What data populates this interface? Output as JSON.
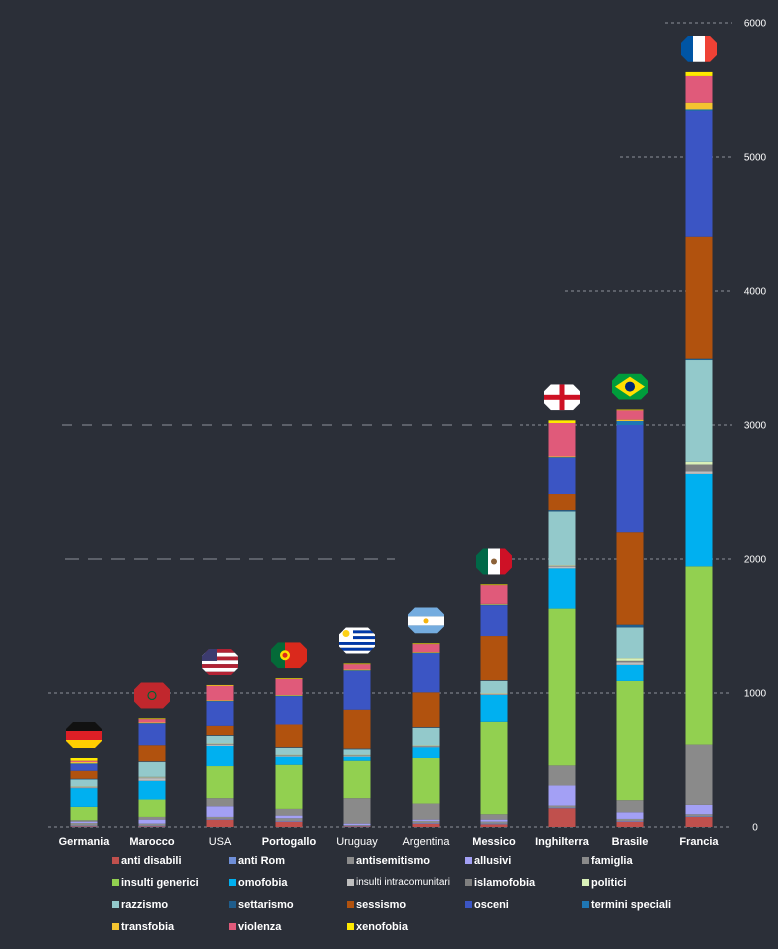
{
  "chart_data": {
    "type": "bar",
    "stacked": true,
    "ylim": [
      0,
      6000
    ],
    "y_ticks": [
      0,
      1000,
      2000,
      3000,
      4000,
      5000,
      6000
    ],
    "y_axis_side": "right",
    "categories": [
      "Germania",
      "Marocco",
      "USA",
      "Portogallo",
      "Uruguay",
      "Argentina",
      "Messico",
      "Inghilterra",
      "Brasile",
      "Francia"
    ],
    "flags": [
      "germany-flag",
      "morocco-flag",
      "usa-flag",
      "portugal-flag",
      "uruguay-flag",
      "argentina-flag",
      "mexico-flag",
      "england-flag",
      "brazil-flag",
      "france-flag"
    ],
    "legend_position": "bottom",
    "series": [
      {
        "name": "anti disabili",
        "color": "#c0504d",
        "values": [
          5,
          5,
          55,
          40,
          5,
          25,
          20,
          140,
          40,
          75
        ]
      },
      {
        "name": "anti Rom",
        "color": "#6f8fd8",
        "values": [
          5,
          5,
          5,
          5,
          5,
          5,
          5,
          5,
          5,
          5
        ]
      },
      {
        "name": "antisemitismo",
        "color": "#8c8c8c",
        "values": [
          20,
          15,
          15,
          20,
          5,
          15,
          15,
          15,
          15,
          15
        ]
      },
      {
        "name": "allusivi",
        "color": "#a3a0f5",
        "values": [
          10,
          30,
          80,
          20,
          10,
          10,
          15,
          150,
          50,
          70
        ]
      },
      {
        "name": "famiglia",
        "color": "#8a8a8a",
        "values": [
          10,
          20,
          60,
          50,
          190,
          120,
          40,
          150,
          90,
          450
        ]
      },
      {
        "name": "insulti generici",
        "color": "#92d050",
        "values": [
          100,
          130,
          240,
          330,
          280,
          340,
          690,
          1170,
          890,
          1330
        ]
      },
      {
        "name": "omofobia",
        "color": "#00b0f0",
        "values": [
          140,
          140,
          150,
          60,
          30,
          80,
          200,
          300,
          120,
          690
        ]
      },
      {
        "name": "insulti intracomunitari",
        "color": "#bfbfbf",
        "values": [
          5,
          20,
          10,
          5,
          5,
          5,
          5,
          15,
          20,
          20
        ]
      },
      {
        "name": "islamofobia",
        "color": "#7f7f7f",
        "values": [
          5,
          5,
          5,
          5,
          5,
          5,
          5,
          5,
          10,
          50
        ]
      },
      {
        "name": "politici",
        "color": "#d9f0b8",
        "values": [
          5,
          5,
          5,
          5,
          5,
          5,
          5,
          5,
          20,
          20
        ]
      },
      {
        "name": "razzismo",
        "color": "#93c9cb",
        "values": [
          50,
          110,
          55,
          50,
          40,
          130,
          90,
          400,
          230,
          760
        ]
      },
      {
        "name": "settarismo",
        "color": "#1f5d8c",
        "values": [
          5,
          5,
          5,
          5,
          5,
          5,
          5,
          10,
          20,
          10
        ]
      },
      {
        "name": "sessismo",
        "color": "#b1520e",
        "values": [
          60,
          120,
          70,
          170,
          290,
          260,
          330,
          120,
          690,
          910
        ]
      },
      {
        "name": "osceni",
        "color": "#3b55c4",
        "values": [
          50,
          160,
          180,
          210,
          290,
          290,
          230,
          270,
          800,
          940
        ]
      },
      {
        "name": "termini speciali",
        "color": "#1f77b4",
        "values": [
          5,
          5,
          5,
          5,
          5,
          5,
          5,
          5,
          30,
          10
        ]
      },
      {
        "name": "transfobia",
        "color": "#f4c430",
        "values": [
          10,
          5,
          5,
          5,
          5,
          5,
          5,
          5,
          10,
          50
        ]
      },
      {
        "name": "violenza",
        "color": "#e05a7a",
        "values": [
          10,
          25,
          110,
          120,
          40,
          60,
          140,
          250,
          70,
          200
        ]
      },
      {
        "name": "xenofobia",
        "color": "#ffea00",
        "values": [
          20,
          5,
          5,
          5,
          5,
          5,
          5,
          20,
          5,
          30
        ]
      }
    ]
  }
}
